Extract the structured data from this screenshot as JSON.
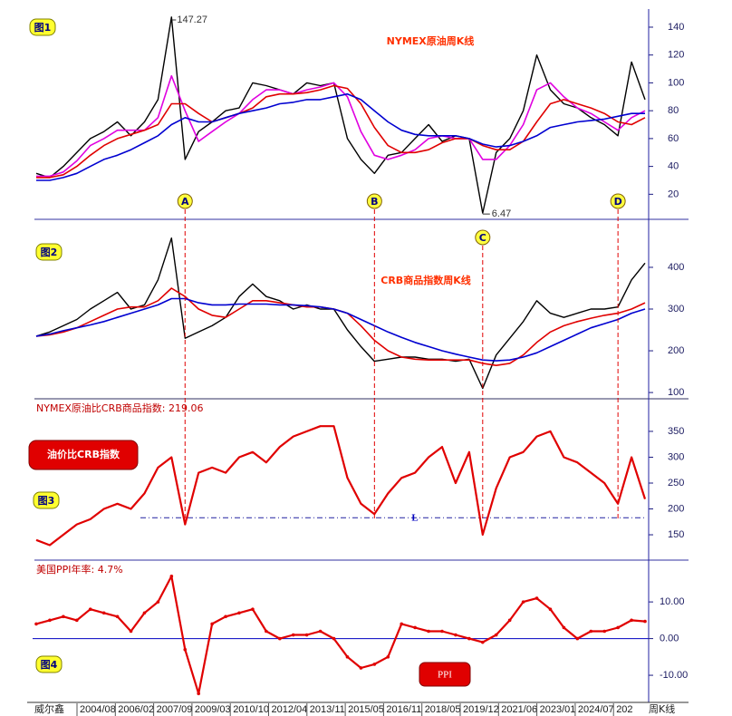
{
  "chart_data": [
    {
      "type": "line",
      "label": "图1",
      "title": "NYMEX原油周K线",
      "ylim": [
        2,
        153
      ],
      "yticks": [
        20,
        40,
        60,
        80,
        100,
        120,
        140
      ],
      "series": [
        {
          "color": "#000000",
          "values": [
            35,
            32,
            40,
            50,
            60,
            65,
            72,
            62,
            72,
            88,
            147.27,
            45,
            65,
            72,
            80,
            82,
            100,
            98,
            95,
            92,
            100,
            98,
            100,
            60,
            45,
            35,
            48,
            50,
            60,
            70,
            58,
            62,
            60,
            6.47,
            50,
            60,
            80,
            120,
            95,
            85,
            82,
            75,
            70,
            62,
            115,
            88
          ]
        },
        {
          "color": "#e000e0",
          "values": [
            33,
            33,
            36,
            44,
            55,
            60,
            66,
            66,
            66,
            75,
            105,
            80,
            58,
            65,
            72,
            78,
            88,
            95,
            95,
            92,
            95,
            97,
            100,
            90,
            65,
            48,
            45,
            48,
            52,
            60,
            62,
            60,
            60,
            45,
            45,
            55,
            70,
            95,
            100,
            90,
            82,
            78,
            72,
            66,
            75,
            80
          ]
        },
        {
          "color": "#e00000",
          "values": [
            32,
            32,
            34,
            40,
            48,
            55,
            60,
            63,
            66,
            70,
            85,
            85,
            78,
            72,
            75,
            78,
            82,
            90,
            92,
            92,
            93,
            95,
            98,
            96,
            85,
            68,
            55,
            50,
            50,
            52,
            57,
            60,
            60,
            55,
            52,
            52,
            58,
            72,
            85,
            88,
            85,
            82,
            78,
            72,
            70,
            75
          ]
        },
        {
          "color": "#0000d0",
          "values": [
            30,
            30,
            32,
            35,
            40,
            45,
            48,
            52,
            57,
            62,
            70,
            75,
            72,
            72,
            75,
            78,
            80,
            82,
            85,
            86,
            88,
            88,
            90,
            92,
            88,
            80,
            72,
            66,
            63,
            62,
            62,
            62,
            60,
            56,
            54,
            55,
            58,
            62,
            68,
            70,
            72,
            73,
            74,
            76,
            78,
            78
          ]
        }
      ],
      "markers": [
        "A",
        "B",
        "C",
        "D"
      ]
    },
    {
      "type": "line",
      "label": "图2",
      "title": "CRB商品指数周K线",
      "ylim": [
        85,
        515
      ],
      "yticks": [
        100,
        200,
        300,
        400
      ],
      "series": [
        {
          "color": "#000000",
          "values": [
            235,
            245,
            260,
            275,
            300,
            320,
            340,
            300,
            310,
            370,
            470,
            230,
            245,
            260,
            280,
            330,
            360,
            330,
            320,
            300,
            310,
            300,
            300,
            250,
            210,
            175,
            180,
            185,
            185,
            180,
            180,
            175,
            180,
            110,
            190,
            230,
            270,
            320,
            290,
            280,
            290,
            300,
            300,
            305,
            370,
            410
          ]
        },
        {
          "color": "#e00000",
          "values": [
            235,
            238,
            245,
            255,
            270,
            285,
            300,
            305,
            305,
            320,
            350,
            330,
            300,
            285,
            280,
            300,
            320,
            320,
            315,
            310,
            305,
            305,
            300,
            290,
            260,
            225,
            200,
            185,
            180,
            178,
            178,
            178,
            178,
            170,
            165,
            170,
            190,
            220,
            245,
            260,
            270,
            278,
            285,
            290,
            300,
            315
          ]
        },
        {
          "color": "#0000d0",
          "values": [
            235,
            240,
            248,
            255,
            262,
            270,
            280,
            290,
            300,
            310,
            325,
            325,
            315,
            310,
            310,
            312,
            312,
            312,
            310,
            310,
            308,
            305,
            300,
            290,
            275,
            260,
            245,
            232,
            220,
            210,
            200,
            192,
            185,
            178,
            176,
            178,
            185,
            195,
            210,
            225,
            240,
            255,
            265,
            275,
            290,
            300
          ]
        }
      ]
    },
    {
      "type": "line",
      "label": "图3",
      "title": "NYMEX原油比CRB商品指数: 219.06",
      "heading": "油价比CRB指数",
      "ylim": [
        101,
        413
      ],
      "yticks": [
        150,
        200,
        250,
        300,
        350
      ],
      "reference_line": {
        "label": "L",
        "value": 183
      },
      "series": [
        {
          "color": "#e00000",
          "values": [
            140,
            130,
            150,
            170,
            180,
            200,
            210,
            200,
            230,
            280,
            300,
            170,
            270,
            280,
            270,
            300,
            310,
            290,
            320,
            340,
            350,
            360,
            360,
            260,
            210,
            190,
            230,
            260,
            270,
            300,
            320,
            250,
            310,
            150,
            240,
            300,
            310,
            340,
            350,
            300,
            290,
            270,
            250,
            210,
            300,
            219.06
          ]
        }
      ]
    },
    {
      "type": "line",
      "label": "图4",
      "title": "美国PPI年率: 4.7%",
      "heading": "PPI",
      "ylim": [
        -17.4,
        21.4
      ],
      "yticks": [
        {
          "value": 10,
          "label": "10.00"
        },
        {
          "value": 0,
          "label": "0.00"
        },
        {
          "value": -10,
          "label": "-10.00"
        }
      ],
      "zero_line": true,
      "series": [
        {
          "color": "#e00000",
          "values": [
            4,
            5,
            6,
            5,
            8,
            7,
            6,
            2,
            7,
            10,
            17,
            -3,
            -15,
            4,
            6,
            7,
            8,
            2,
            0,
            1,
            1,
            2,
            0,
            -5,
            -8,
            -7,
            -5,
            4,
            3,
            2,
            2,
            1,
            0,
            -1,
            1,
            5,
            10,
            11,
            8,
            3,
            0,
            2,
            2,
            3,
            5,
            4.7
          ]
        }
      ]
    }
  ],
  "footer": {
    "source": "威尔鑫",
    "period": "周K线",
    "dates": [
      "2004/08",
      "2006/02",
      "2007/09",
      "2009/03",
      "2010/10",
      "2012/04",
      "2013/11",
      "2015/05",
      "2016/11",
      "2018/05",
      "2019/12",
      "2021/06",
      "2023/01",
      "2024/07",
      "202"
    ]
  }
}
